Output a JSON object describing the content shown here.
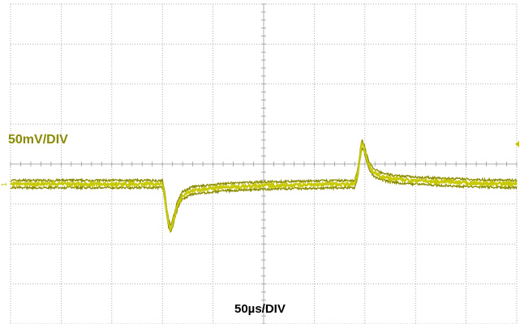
{
  "colors": {
    "trace": "#8a8a00",
    "trace_fill": "#c9c900",
    "grid": "#9a9a9a",
    "background": "#ffffff",
    "ground_marker": "#c9c400"
  },
  "scope": {
    "vertical_scale_label": "50mV/DIV",
    "horizontal_scale_label": "50µs/DIV",
    "channel_marker": "1",
    "trigger_marker_icon": "triangle-left-icon"
  },
  "chart_data": {
    "type": "line",
    "title": "",
    "xlabel": "50µs/DIV",
    "ylabel": "50mV/DIV",
    "x_unit": "µs",
    "y_unit": "mV",
    "xlim": [
      -250,
      250
    ],
    "ylim": [
      -175,
      225
    ],
    "x_divisions": 10,
    "y_divisions": 8,
    "grid": true,
    "series": [
      {
        "name": "",
        "x": [
          -250,
          -100,
          -98,
          -96,
          -94,
          -92,
          -90,
          -88,
          -85,
          -80,
          -70,
          -55,
          -40,
          -20,
          0,
          40,
          90,
          93,
          95,
          97,
          99,
          101,
          104,
          108,
          115,
          125,
          140,
          170,
          210,
          250
        ],
        "y": [
          0,
          0,
          -12,
          -32,
          -48,
          -56,
          -50,
          -40,
          -26,
          -14,
          -8,
          -6,
          -4,
          -3,
          -2,
          -1,
          0,
          14,
          34,
          50,
          46,
          36,
          24,
          15,
          10,
          7,
          5,
          3,
          1,
          0
        ]
      }
    ]
  }
}
